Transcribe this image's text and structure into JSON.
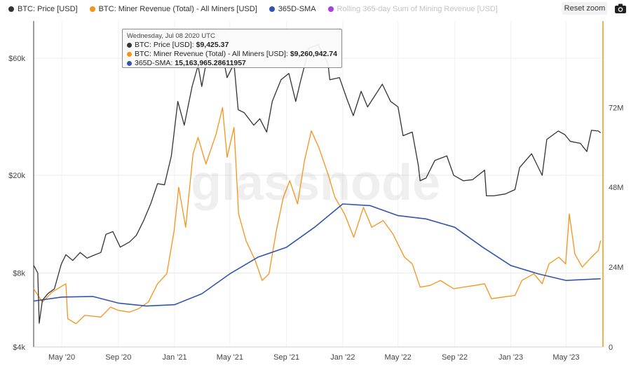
{
  "legend": [
    {
      "label": "BTC: Price [USD]",
      "color": "#333333",
      "active": true
    },
    {
      "label": "BTC: Miner Revenue (Total) - All Miners [USD]",
      "color": "#f7931a",
      "active": true
    },
    {
      "label": "365D-SMA",
      "color": "#3355b0",
      "active": true
    },
    {
      "label": "Rolling 365-day Sum of Mining Revenue [USD]",
      "color": "#a83fe0",
      "active": false
    }
  ],
  "toolbar": {
    "reset_zoom_label": "Reset zoom",
    "camera_icon": "camera-icon"
  },
  "watermark": "glassnode",
  "tooltip": {
    "date": "Wednesday, Jul 08 2020 UTC",
    "rows": [
      {
        "label": "BTC: Price [USD]:",
        "value": "$9,425.37",
        "color": "#333333"
      },
      {
        "label": "BTC: Miner Revenue (Total) - All Miners [USD]:",
        "value": "$9,260,942.74",
        "color": "#f7931a"
      },
      {
        "label": "365D-SMA:",
        "value": "15,163,965.28611957",
        "color": "#3355b0"
      }
    ]
  },
  "chart_data": {
    "type": "line",
    "x_range": [
      "2020-03-01",
      "2023-07-20"
    ],
    "x_ticks": [
      {
        "label": "May '20",
        "date": "2020-05-01"
      },
      {
        "label": "Sep '20",
        "date": "2020-09-01"
      },
      {
        "label": "Jan '21",
        "date": "2021-01-01"
      },
      {
        "label": "May '21",
        "date": "2021-05-01"
      },
      {
        "label": "Sep '21",
        "date": "2021-09-01"
      },
      {
        "label": "Jan '22",
        "date": "2022-01-01"
      },
      {
        "label": "May '22",
        "date": "2022-05-01"
      },
      {
        "label": "Sep '22",
        "date": "2022-09-01"
      },
      {
        "label": "Jan '23",
        "date": "2023-01-01"
      },
      {
        "label": "May '23",
        "date": "2023-05-01"
      }
    ],
    "y_left": {
      "scale": "log",
      "range": [
        4000,
        85000
      ],
      "ticks": [
        {
          "label": "$4k",
          "value": 4000
        },
        {
          "label": "$8k",
          "value": 8000
        },
        {
          "label": "$20k",
          "value": 20000
        },
        {
          "label": "$60k",
          "value": 60000
        }
      ]
    },
    "y_right": {
      "scale": "linear",
      "range": [
        0,
        98000000
      ],
      "ticks": [
        {
          "label": "0",
          "value": 0
        },
        {
          "label": "24M",
          "value": 24000000
        },
        {
          "label": "48M",
          "value": 48000000
        },
        {
          "label": "72M",
          "value": 72000000
        }
      ]
    },
    "grid": true,
    "legend_position": "top-left",
    "series": [
      {
        "name": "BTC: Price [USD]",
        "axis": "left",
        "color": "#333333",
        "points": [
          [
            "2020-03-01",
            8600
          ],
          [
            "2020-03-10",
            8000
          ],
          [
            "2020-03-13",
            5000
          ],
          [
            "2020-03-20",
            6200
          ],
          [
            "2020-04-01",
            6600
          ],
          [
            "2020-04-15",
            6900
          ],
          [
            "2020-04-30",
            8700
          ],
          [
            "2020-05-10",
            9500
          ],
          [
            "2020-05-25",
            9000
          ],
          [
            "2020-06-10",
            9700
          ],
          [
            "2020-06-25",
            9200
          ],
          [
            "2020-07-08",
            9425
          ],
          [
            "2020-07-25",
            9700
          ],
          [
            "2020-08-05",
            11500
          ],
          [
            "2020-08-20",
            11800
          ],
          [
            "2020-09-05",
            10200
          ],
          [
            "2020-09-25",
            10700
          ],
          [
            "2020-10-10",
            11400
          ],
          [
            "2020-10-25",
            13000
          ],
          [
            "2020-11-10",
            15300
          ],
          [
            "2020-11-25",
            18500
          ],
          [
            "2020-12-10",
            18300
          ],
          [
            "2020-12-25",
            24000
          ],
          [
            "2021-01-08",
            40000
          ],
          [
            "2021-01-22",
            32000
          ],
          [
            "2021-02-08",
            46000
          ],
          [
            "2021-02-21",
            56000
          ],
          [
            "2021-03-01",
            46000
          ],
          [
            "2021-03-13",
            61000
          ],
          [
            "2021-03-30",
            58000
          ],
          [
            "2021-04-14",
            63500
          ],
          [
            "2021-04-25",
            50000
          ],
          [
            "2021-05-10",
            57000
          ],
          [
            "2021-05-19",
            37000
          ],
          [
            "2021-06-01",
            36000
          ],
          [
            "2021-06-22",
            32000
          ],
          [
            "2021-07-05",
            34000
          ],
          [
            "2021-07-20",
            30000
          ],
          [
            "2021-08-01",
            40000
          ],
          [
            "2021-08-20",
            49000
          ],
          [
            "2021-09-06",
            52000
          ],
          [
            "2021-09-21",
            40000
          ],
          [
            "2021-10-01",
            48000
          ],
          [
            "2021-10-20",
            66000
          ],
          [
            "2021-11-09",
            68000
          ],
          [
            "2021-11-30",
            57000
          ],
          [
            "2021-12-04",
            49000
          ],
          [
            "2021-12-25",
            50000
          ],
          [
            "2022-01-10",
            41000
          ],
          [
            "2022-01-24",
            35000
          ],
          [
            "2022-02-10",
            44000
          ],
          [
            "2022-02-24",
            38000
          ],
          [
            "2022-03-28",
            47000
          ],
          [
            "2022-04-15",
            40000
          ],
          [
            "2022-05-01",
            38000
          ],
          [
            "2022-05-12",
            29000
          ],
          [
            "2022-06-01",
            30000
          ],
          [
            "2022-06-14",
            22000
          ],
          [
            "2022-06-18",
            19000
          ],
          [
            "2022-07-01",
            19500
          ],
          [
            "2022-07-20",
            23000
          ],
          [
            "2022-08-15",
            24000
          ],
          [
            "2022-08-30",
            20000
          ],
          [
            "2022-09-20",
            19000
          ],
          [
            "2022-10-10",
            19200
          ],
          [
            "2022-11-05",
            21000
          ],
          [
            "2022-11-09",
            16500
          ],
          [
            "2022-11-25",
            16500
          ],
          [
            "2022-12-20",
            16800
          ],
          [
            "2023-01-10",
            17500
          ],
          [
            "2023-01-20",
            21500
          ],
          [
            "2023-02-15",
            24500
          ],
          [
            "2023-03-10",
            20000
          ],
          [
            "2023-03-20",
            28000
          ],
          [
            "2023-04-14",
            30300
          ],
          [
            "2023-04-28",
            29300
          ],
          [
            "2023-05-10",
            27500
          ],
          [
            "2023-06-01",
            27000
          ],
          [
            "2023-06-15",
            25000
          ],
          [
            "2023-06-25",
            30500
          ],
          [
            "2023-07-10",
            30300
          ],
          [
            "2023-07-15",
            29800
          ]
        ]
      },
      {
        "name": "BTC: Miner Revenue (Total) - All Miners [USD]",
        "axis": "right",
        "color": "#f7931a",
        "points": [
          [
            "2020-03-01",
            17500000
          ],
          [
            "2020-03-20",
            13500000
          ],
          [
            "2020-04-10",
            16500000
          ],
          [
            "2020-05-10",
            19000000
          ],
          [
            "2020-05-14",
            8500000
          ],
          [
            "2020-06-01",
            7000000
          ],
          [
            "2020-06-20",
            9500000
          ],
          [
            "2020-07-08",
            9260942
          ],
          [
            "2020-07-25",
            9000000
          ],
          [
            "2020-08-15",
            12000000
          ],
          [
            "2020-09-01",
            11000000
          ],
          [
            "2020-09-25",
            10500000
          ],
          [
            "2020-10-15",
            11500000
          ],
          [
            "2020-11-05",
            13500000
          ],
          [
            "2020-11-25",
            19000000
          ],
          [
            "2020-12-15",
            22000000
          ],
          [
            "2020-12-31",
            35000000
          ],
          [
            "2021-01-10",
            48000000
          ],
          [
            "2021-01-25",
            36000000
          ],
          [
            "2021-02-10",
            58000000
          ],
          [
            "2021-02-21",
            63000000
          ],
          [
            "2021-03-10",
            55000000
          ],
          [
            "2021-04-01",
            64000000
          ],
          [
            "2021-04-15",
            72000000
          ],
          [
            "2021-04-25",
            57000000
          ],
          [
            "2021-05-10",
            66000000
          ],
          [
            "2021-05-20",
            40000000
          ],
          [
            "2021-06-05",
            32000000
          ],
          [
            "2021-06-25",
            26000000
          ],
          [
            "2021-07-10",
            20000000
          ],
          [
            "2021-07-25",
            22000000
          ],
          [
            "2021-08-10",
            35000000
          ],
          [
            "2021-08-25",
            45000000
          ],
          [
            "2021-09-08",
            50000000
          ],
          [
            "2021-09-25",
            43000000
          ],
          [
            "2021-10-10",
            56000000
          ],
          [
            "2021-10-25",
            65000000
          ],
          [
            "2021-11-10",
            60000000
          ],
          [
            "2021-11-30",
            52000000
          ],
          [
            "2021-12-15",
            45000000
          ],
          [
            "2022-01-05",
            40000000
          ],
          [
            "2022-01-25",
            33000000
          ],
          [
            "2022-02-15",
            42000000
          ],
          [
            "2022-03-05",
            36000000
          ],
          [
            "2022-03-30",
            38000000
          ],
          [
            "2022-04-20",
            34000000
          ],
          [
            "2022-05-15",
            27000000
          ],
          [
            "2022-06-01",
            25000000
          ],
          [
            "2022-06-18",
            18000000
          ],
          [
            "2022-07-10",
            18500000
          ],
          [
            "2022-08-01",
            20000000
          ],
          [
            "2022-08-30",
            17500000
          ],
          [
            "2022-09-20",
            18000000
          ],
          [
            "2022-10-15",
            18500000
          ],
          [
            "2022-11-05",
            19000000
          ],
          [
            "2022-11-20",
            14500000
          ],
          [
            "2022-12-15",
            15000000
          ],
          [
            "2023-01-10",
            15500000
          ],
          [
            "2023-01-25",
            20000000
          ],
          [
            "2023-02-20",
            22000000
          ],
          [
            "2023-03-10",
            19000000
          ],
          [
            "2023-03-25",
            25000000
          ],
          [
            "2023-04-15",
            27000000
          ],
          [
            "2023-04-30",
            25000000
          ],
          [
            "2023-05-08",
            40000000
          ],
          [
            "2023-05-20",
            28000000
          ],
          [
            "2023-06-05",
            24000000
          ],
          [
            "2023-06-25",
            27000000
          ],
          [
            "2023-07-10",
            29000000
          ],
          [
            "2023-07-15",
            32000000
          ]
        ]
      },
      {
        "name": "365D-SMA",
        "axis": "right",
        "color": "#3355b0",
        "points": [
          [
            "2020-03-01",
            13800000
          ],
          [
            "2020-05-01",
            15000000
          ],
          [
            "2020-07-08",
            15163965
          ],
          [
            "2020-09-01",
            13200000
          ],
          [
            "2020-11-01",
            12300000
          ],
          [
            "2021-01-01",
            12700000
          ],
          [
            "2021-03-01",
            16000000
          ],
          [
            "2021-05-01",
            22000000
          ],
          [
            "2021-07-01",
            27000000
          ],
          [
            "2021-09-01",
            30000000
          ],
          [
            "2021-11-01",
            36000000
          ],
          [
            "2022-01-01",
            43000000
          ],
          [
            "2022-03-01",
            42500000
          ],
          [
            "2022-05-01",
            39500000
          ],
          [
            "2022-07-01",
            38500000
          ],
          [
            "2022-09-01",
            36000000
          ],
          [
            "2022-11-01",
            30000000
          ],
          [
            "2023-01-01",
            24500000
          ],
          [
            "2023-03-01",
            22000000
          ],
          [
            "2023-05-01",
            20000000
          ],
          [
            "2023-07-15",
            20500000
          ]
        ]
      }
    ]
  }
}
